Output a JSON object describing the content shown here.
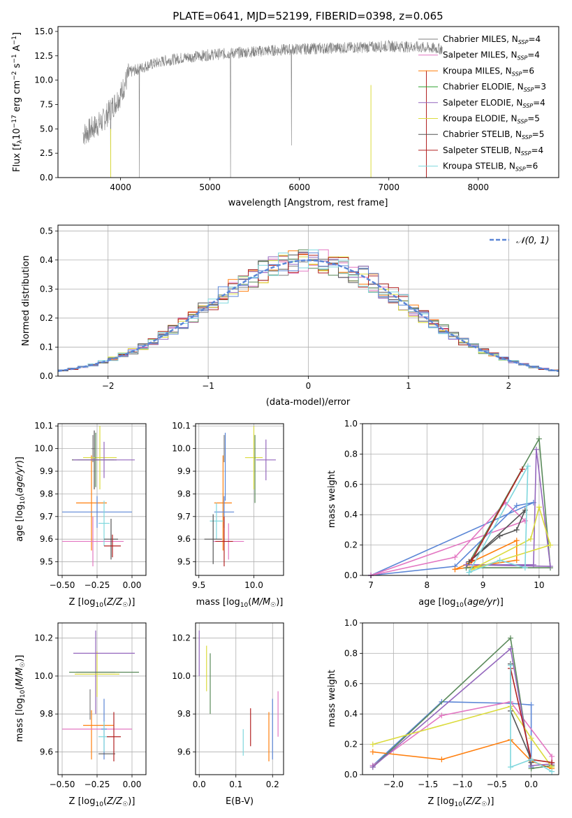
{
  "figure_title": "PLATE=0641, MJD=52199, FIBERID=0398, z=0.065",
  "colors": {
    "Chabrier MILES": "#808080",
    "Salpeter MILES": "#e377c2",
    "Kroupa MILES": "#ff7f0e",
    "Chabrier ELODIE": "#2ca02c",
    "Salpeter ELODIE": "#9467bd",
    "Kroupa ELODIE": "#dbdb3d",
    "Chabrier STELIB": "#555555",
    "Salpeter STELIB": "#b22222",
    "Kroupa STELIB": "#7fd7dd",
    "blue": "#5b86d6",
    "dark_green": "#5a8a5a"
  },
  "chart_data": [
    {
      "id": "spectrum",
      "type": "line",
      "title": "PLATE=0641, MJD=52199, FIBERID=0398, z=0.065",
      "xlabel": "wavelength [Angstrom, rest frame]",
      "ylabel": "Flux [f_λ 10^-17 erg cm^-2 s^-1 A^-1]",
      "xlim": [
        3300,
        8900
      ],
      "ylim": [
        0,
        15.5
      ],
      "xticks": [
        4000,
        5000,
        6000,
        7000,
        8000
      ],
      "yticks": [
        0.0,
        2.5,
        5.0,
        7.5,
        10.0,
        12.5,
        15.0
      ],
      "grid": false,
      "legend_position": "top-right",
      "legend": [
        {
          "label": "Chabrier MILES, N_SSP=4",
          "color": "#808080"
        },
        {
          "label": "Salpeter MILES, N_SSP=4",
          "color": "#e377c2"
        },
        {
          "label": "Kroupa MILES, N_SSP=6",
          "color": "#ff7f0e"
        },
        {
          "label": "Chabrier ELODIE, N_SSP=3",
          "color": "#2ca02c"
        },
        {
          "label": "Salpeter ELODIE, N_SSP=4",
          "color": "#9467bd"
        },
        {
          "label": "Kroupa ELODIE, N_SSP=5",
          "color": "#dbdb3d"
        },
        {
          "label": "Chabrier STELIB, N_SSP=5",
          "color": "#555555"
        },
        {
          "label": "Salpeter STELIB, N_SSP=4",
          "color": "#b22222"
        },
        {
          "label": "Kroupa STELIB, N_SSP=6",
          "color": "#7fd7dd"
        }
      ],
      "continuum_x": [
        3600,
        3800,
        4000,
        4100,
        4300,
        4500,
        4700,
        5000,
        5300,
        5600,
        6000,
        6400,
        6800,
        7000,
        7300,
        7600
      ],
      "continuum_y": [
        4.5,
        5.8,
        8.5,
        10.8,
        11.5,
        12.0,
        12.3,
        12.6,
        12.8,
        13.0,
        13.2,
        13.3,
        13.4,
        13.5,
        13.4,
        13.2
      ]
    },
    {
      "id": "residuals",
      "type": "line",
      "xlabel": "(data-model)/error",
      "ylabel": "Normed distribution",
      "xlim": [
        -2.5,
        2.5
      ],
      "ylim": [
        0,
        0.52
      ],
      "xticks": [
        -2,
        -1,
        0,
        1,
        2
      ],
      "yticks": [
        0.0,
        0.1,
        0.2,
        0.3,
        0.4,
        0.5
      ],
      "grid": true,
      "legend_position": "top-right",
      "legend": [
        {
          "label": "N(0,1)",
          "color": "#5b86d6",
          "style": "dashed"
        }
      ],
      "bin_width": 0.1
    },
    {
      "id": "age_vs_Z",
      "type": "scatter",
      "xlabel": "Z [log10(Z/Z☉)]",
      "ylabel": "age [log10(age/yr)]",
      "xlim": [
        -0.53,
        0.1
      ],
      "ylim": [
        9.44,
        10.11
      ],
      "xticks": [
        -0.5,
        -0.25,
        0.0
      ],
      "xticklabels": [
        "−0.50",
        "−0.25",
        "0.00"
      ],
      "yticks": [
        9.5,
        9.6,
        9.7,
        9.8,
        9.9,
        10.0,
        10.1
      ],
      "grid": true,
      "points": [
        {
          "x": -0.29,
          "y": 9.76,
          "xerr": 0.11,
          "yerr": 0.21,
          "color": "#ff7f0e"
        },
        {
          "x": -0.28,
          "y": 10.0,
          "xerr": 0.01,
          "yerr": 0.06,
          "color": "#808080"
        },
        {
          "x": -0.27,
          "y": 9.95,
          "xerr": 0.16,
          "yerr": 0.13,
          "color": "#555555"
        },
        {
          "x": -0.23,
          "y": 9.96,
          "xerr": 0.12,
          "yerr": 0.14,
          "color": "#dbdb3d"
        },
        {
          "x": -0.26,
          "y": 9.95,
          "xerr": 0.13,
          "yerr": 0.12,
          "color": "#5a8a5a"
        },
        {
          "x": -0.2,
          "y": 9.95,
          "xerr": 0.22,
          "yerr": 0.08,
          "color": "#9467bd"
        },
        {
          "x": -0.25,
          "y": 9.72,
          "xerr": 0.25,
          "yerr": 0.07,
          "color": "#5b86d6"
        },
        {
          "x": -0.28,
          "y": 9.59,
          "xerr": 0.22,
          "yerr": 0.11,
          "color": "#e377c2"
        },
        {
          "x": -0.2,
          "y": 9.67,
          "xerr": 0.04,
          "yerr": 0.1,
          "color": "#7fd7dd"
        },
        {
          "x": -0.15,
          "y": 9.6,
          "xerr": 0.05,
          "yerr": 0.09,
          "color": "#555555"
        },
        {
          "x": -0.14,
          "y": 9.57,
          "xerr": 0.06,
          "yerr": 0.05,
          "color": "#b22222"
        }
      ]
    },
    {
      "id": "age_vs_mass",
      "type": "scatter",
      "xlabel": "mass [log10(M/M☉)]",
      "xlim": [
        9.47,
        10.27
      ],
      "ylim": [
        9.44,
        10.11
      ],
      "xticks": [
        9.5,
        10.0
      ],
      "yticks": [
        9.5,
        9.6,
        9.7,
        9.8,
        9.9,
        10.0,
        10.1
      ],
      "grid": true,
      "points": [
        {
          "x": 9.72,
          "y": 9.76,
          "xerr": 0.08,
          "yerr": 0.21,
          "color": "#ff7f0e"
        },
        {
          "x": 9.73,
          "y": 10.0,
          "xerr": 0.0,
          "yerr": 0.06,
          "color": "#808080"
        },
        {
          "x": 9.74,
          "y": 9.92,
          "xerr": 0.0,
          "yerr": 0.15,
          "color": "#5b86d6"
        },
        {
          "x": 10.0,
          "y": 9.96,
          "xerr": 0.08,
          "yerr": 0.14,
          "color": "#dbdb3d"
        },
        {
          "x": 10.01,
          "y": 9.91,
          "xerr": 0.0,
          "yerr": 0.15,
          "color": "#5a8a5a"
        },
        {
          "x": 10.11,
          "y": 9.95,
          "xerr": 0.09,
          "yerr": 0.09,
          "color": "#9467bd"
        },
        {
          "x": 9.73,
          "y": 9.72,
          "xerr": 0.09,
          "yerr": 0.07,
          "color": "#5b86d6"
        },
        {
          "x": 9.77,
          "y": 9.59,
          "xerr": 0.14,
          "yerr": 0.08,
          "color": "#e377c2"
        },
        {
          "x": 9.66,
          "y": 9.68,
          "xerr": 0.06,
          "yerr": 0.08,
          "color": "#7fd7dd"
        },
        {
          "x": 9.63,
          "y": 9.6,
          "xerr": 0.08,
          "yerr": 0.11,
          "color": "#555555"
        },
        {
          "x": 9.73,
          "y": 9.59,
          "xerr": 0.08,
          "yerr": 0.11,
          "color": "#b22222"
        }
      ]
    },
    {
      "id": "massweight_vs_age",
      "type": "line",
      "xlabel": "age [log10(age/yr)]",
      "ylabel": "mass weight",
      "xlim": [
        6.85,
        10.35
      ],
      "ylim": [
        0,
        1.0
      ],
      "xticks": [
        7,
        8,
        9,
        10
      ],
      "yticks": [
        0.0,
        0.2,
        0.4,
        0.6,
        0.8,
        1.0
      ],
      "grid": true,
      "series": [
        {
          "color": "#5b86d6",
          "x": [
            7.0,
            8.5,
            9.6,
            9.9,
            7.0
          ],
          "y": [
            0.0,
            0.06,
            0.46,
            0.48,
            0.0
          ]
        },
        {
          "color": "#e377c2",
          "x": [
            7.0,
            8.5,
            9.4,
            9.75,
            7.0
          ],
          "y": [
            0.0,
            0.12,
            0.48,
            0.36,
            0.0
          ]
        },
        {
          "color": "#ff7f0e",
          "x": [
            8.5,
            8.75,
            9.6,
            9.6,
            8.5
          ],
          "y": [
            0.04,
            0.08,
            0.23,
            0.1,
            0.04
          ]
        },
        {
          "color": "#5a8a5a",
          "x": [
            8.7,
            10.0,
            10.2,
            8.7
          ],
          "y": [
            0.05,
            0.9,
            0.05,
            0.05
          ]
        },
        {
          "color": "#9467bd",
          "x": [
            8.7,
            9.9,
            9.95,
            10.2,
            8.7
          ],
          "y": [
            0.07,
            0.07,
            0.83,
            0.06,
            0.07
          ]
        },
        {
          "color": "#dbdb3d",
          "x": [
            8.8,
            9.85,
            10.0,
            10.2,
            8.8
          ],
          "y": [
            0.04,
            0.24,
            0.45,
            0.2,
            0.04
          ]
        },
        {
          "color": "#555555",
          "x": [
            8.75,
            9.3,
            9.6,
            9.75,
            8.75
          ],
          "y": [
            0.09,
            0.26,
            0.3,
            0.43,
            0.09
          ]
        },
        {
          "color": "#b22222",
          "x": [
            8.8,
            9.7,
            8.8
          ],
          "y": [
            0.1,
            0.7,
            0.1
          ]
        },
        {
          "color": "#7fd7dd",
          "x": [
            8.75,
            9.3,
            9.75,
            9.8,
            8.75
          ],
          "y": [
            0.02,
            0.1,
            0.05,
            0.72,
            0.02
          ]
        }
      ]
    },
    {
      "id": "mass_vs_Z",
      "type": "scatter",
      "xlabel": "Z [log10(Z/Z☉)]",
      "ylabel": "mass [log10(M/M☉)]",
      "xlim": [
        -0.53,
        0.1
      ],
      "ylim": [
        9.48,
        10.28
      ],
      "xticks": [
        -0.5,
        -0.25,
        0.0
      ],
      "xticklabels": [
        "−0.50",
        "−0.25",
        "0.00"
      ],
      "yticks": [
        9.6,
        9.8,
        10.0,
        10.2
      ],
      "grid": true,
      "points": [
        {
          "x": -0.29,
          "y": 9.69,
          "xerr": 0.0,
          "yerr": 0.13,
          "color": "#ff7f0e"
        },
        {
          "x": -0.24,
          "y": 9.74,
          "xerr": 0.11,
          "yerr": 0.0,
          "color": "#ff7f0e"
        },
        {
          "x": -0.26,
          "y": 10.02,
          "xerr": 0.14,
          "yerr": 0.22,
          "color": "#9467bd"
        },
        {
          "x": -0.25,
          "y": 10.01,
          "xerr": 0.16,
          "yerr": 0.12,
          "color": "#dbdb3d"
        },
        {
          "x": -0.2,
          "y": 10.12,
          "xerr": 0.22,
          "yerr": 0.0,
          "color": "#9467bd"
        },
        {
          "x": -0.2,
          "y": 10.02,
          "xerr": 0.25,
          "yerr": 0.0,
          "color": "#5a8a5a"
        },
        {
          "x": -0.25,
          "y": 9.72,
          "xerr": 0.25,
          "yerr": 0.0,
          "color": "#e377c2"
        },
        {
          "x": -0.2,
          "y": 9.72,
          "xerr": 0.02,
          "yerr": 0.16,
          "color": "#5b86d6"
        },
        {
          "x": -0.2,
          "y": 9.68,
          "xerr": 0.04,
          "yerr": 0.08,
          "color": "#7fd7dd"
        },
        {
          "x": -0.18,
          "y": 9.59,
          "xerr": 0.06,
          "yerr": 0.0,
          "color": "#555555"
        },
        {
          "x": -0.13,
          "y": 9.68,
          "xerr": 0.05,
          "yerr": 0.13,
          "color": "#b22222"
        },
        {
          "x": -0.3,
          "y": 9.85,
          "xerr": 0.0,
          "yerr": 0.08,
          "color": "#808080"
        }
      ]
    },
    {
      "id": "mass_vs_ebv",
      "type": "scatter",
      "xlabel": "E(B-V)",
      "xlim": [
        -0.01,
        0.23
      ],
      "ylim": [
        9.48,
        10.28
      ],
      "xticks": [
        0.0,
        0.1,
        0.2
      ],
      "yticks": [
        9.6,
        9.8,
        10.0,
        10.2
      ],
      "grid": true,
      "points": [
        {
          "x": 0.0,
          "y": 10.12,
          "xerr": 0.0,
          "yerr": 0.12,
          "color": "#9467bd"
        },
        {
          "x": 0.02,
          "y": 10.04,
          "xerr": 0.0,
          "yerr": 0.12,
          "color": "#dbdb3d"
        },
        {
          "x": 0.03,
          "y": 9.96,
          "xerr": 0.0,
          "yerr": 0.16,
          "color": "#5a8a5a"
        },
        {
          "x": 0.12,
          "y": 9.65,
          "xerr": 0.0,
          "yerr": 0.07,
          "color": "#7fd7dd"
        },
        {
          "x": 0.14,
          "y": 9.73,
          "xerr": 0.0,
          "yerr": 0.1,
          "color": "#b22222"
        },
        {
          "x": 0.19,
          "y": 9.68,
          "xerr": 0.0,
          "yerr": 0.13,
          "color": "#ff7f0e"
        },
        {
          "x": 0.2,
          "y": 9.72,
          "xerr": 0.0,
          "yerr": 0.16,
          "color": "#5b86d6"
        },
        {
          "x": 0.215,
          "y": 9.8,
          "xerr": 0.0,
          "yerr": 0.12,
          "color": "#e377c2"
        }
      ]
    },
    {
      "id": "massweight_vs_Z",
      "type": "line",
      "xlabel": "Z [log10(Z/Z☉)]",
      "ylabel": "mass weight",
      "xlim": [
        -2.45,
        0.4
      ],
      "ylim": [
        0,
        1.0
      ],
      "xticks": [
        -2.0,
        -1.5,
        -1.0,
        -0.5,
        0.0
      ],
      "xticklabels": [
        "−2.0",
        "−1.5",
        "−1.0",
        "−0.5",
        "0.0"
      ],
      "yticks": [
        0.0,
        0.2,
        0.4,
        0.6,
        0.8,
        1.0
      ],
      "grid": true,
      "series": [
        {
          "color": "#5b86d6",
          "x": [
            -2.3,
            -1.3,
            -0.3,
            0.0,
            0.0
          ],
          "y": [
            0.06,
            0.48,
            0.47,
            0.46,
            0.05
          ]
        },
        {
          "color": "#e377c2",
          "x": [
            -2.3,
            -1.3,
            -0.3,
            0.3,
            0.3
          ],
          "y": [
            0.06,
            0.39,
            0.48,
            0.12,
            0.06
          ]
        },
        {
          "color": "#ff7f0e",
          "x": [
            -2.3,
            -1.3,
            -0.3,
            0.0,
            0.3
          ],
          "y": [
            0.15,
            0.1,
            0.23,
            0.09,
            0.04
          ]
        },
        {
          "color": "#5a8a5a",
          "x": [
            -2.3,
            -0.3,
            0.0,
            0.3
          ],
          "y": [
            0.05,
            0.9,
            0.04,
            0.06
          ]
        },
        {
          "color": "#9467bd",
          "x": [
            -2.3,
            -0.3,
            0.0,
            0.3
          ],
          "y": [
            0.05,
            0.83,
            0.06,
            0.07
          ]
        },
        {
          "color": "#dbdb3d",
          "x": [
            -2.3,
            -0.3,
            0.0,
            0.3
          ],
          "y": [
            0.2,
            0.45,
            0.24,
            0.05
          ]
        },
        {
          "color": "#555555",
          "x": [
            -0.3,
            -0.3,
            0.0,
            0.0
          ],
          "y": [
            0.73,
            0.42,
            0.1,
            0.08
          ]
        },
        {
          "color": "#b22222",
          "x": [
            -0.3,
            0.0,
            0.3
          ],
          "y": [
            0.7,
            0.1,
            0.08
          ]
        },
        {
          "color": "#7fd7dd",
          "x": [
            -0.3,
            -0.3,
            0.0,
            0.3
          ],
          "y": [
            0.72,
            0.05,
            0.1,
            0.02
          ]
        }
      ]
    }
  ]
}
